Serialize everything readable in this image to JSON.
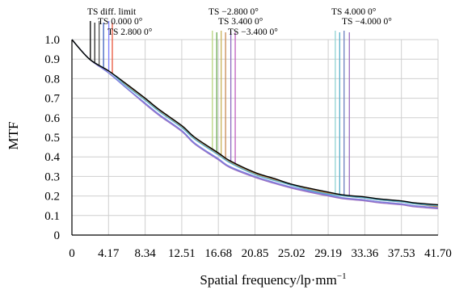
{
  "chart_data": {
    "type": "line",
    "title": "",
    "xlabel": "Spatial frequency/lp·mm",
    "xlabel_superscript": "−1",
    "ylabel": "MTF",
    "xlim": [
      0,
      41.7
    ],
    "ylim": [
      0,
      1.0
    ],
    "x_ticks": [
      "0",
      "4.17",
      "8.34",
      "12.51",
      "16.68",
      "20.85",
      "25.02",
      "29.19",
      "33.36",
      "37.53",
      "41.70"
    ],
    "y_ticks": [
      "0",
      "0.1",
      "0.2",
      "0.3",
      "0.4",
      "0.5",
      "0.6",
      "0.7",
      "0.8",
      "0.9",
      "1.0"
    ],
    "grid": true,
    "legend_groups": [
      {
        "labels": [
          "TS diff. limit",
          "TS 0.000 0°",
          "TS 2.800 0°"
        ],
        "marker_colors": [
          "#000000",
          "#2b2b2b",
          "#555555",
          "#3c5fbf",
          "#8080ff",
          "#e8553a"
        ],
        "marker_x": [
          2.1,
          2.6,
          3.1,
          3.6,
          4.2,
          4.6
        ]
      },
      {
        "labels": [
          "TS −2.800 0°",
          "TS 3.400 0°",
          "TS −3.400 0°"
        ],
        "marker_colors": [
          "#b9d680",
          "#6aa84f",
          "#c9b45a",
          "#c88a52",
          "#8e6bbf",
          "#c060c0"
        ],
        "marker_x": [
          16.0,
          16.5,
          17.0,
          17.5,
          18.1,
          18.6
        ]
      },
      {
        "labels": [
          "TS 4.000 0°",
          "TS −4.000 0°"
        ],
        "marker_colors": [
          "#8fd3d3",
          "#5ab0c9",
          "#6b7fbf",
          "#9b6fc0"
        ],
        "marker_x": [
          30.0,
          30.5,
          31.0,
          31.6
        ]
      }
    ],
    "series": [
      {
        "color": "#000000",
        "x": [
          0,
          2,
          4.17,
          6,
          8.34,
          10,
          12.51,
          14,
          16.68,
          18,
          20.85,
          23,
          25.02,
          27,
          29.19,
          31,
          33.36,
          35,
          37.53,
          39,
          41.7
        ],
        "y": [
          1.0,
          0.9,
          0.84,
          0.78,
          0.7,
          0.64,
          0.56,
          0.5,
          0.42,
          0.38,
          0.32,
          0.29,
          0.26,
          0.24,
          0.22,
          0.205,
          0.195,
          0.185,
          0.175,
          0.165,
          0.155
        ]
      },
      {
        "color": "#5ab0c9",
        "x": [
          0,
          2,
          4.17,
          6,
          8.34,
          10,
          12.51,
          14,
          16.68,
          18,
          20.85,
          23,
          25.02,
          27,
          29.19,
          31,
          33.36,
          35,
          37.53,
          39,
          41.7
        ],
        "y": [
          1.0,
          0.9,
          0.84,
          0.77,
          0.69,
          0.63,
          0.55,
          0.49,
          0.41,
          0.37,
          0.31,
          0.28,
          0.255,
          0.23,
          0.21,
          0.2,
          0.19,
          0.18,
          0.17,
          0.16,
          0.15
        ]
      },
      {
        "color": "#c88a52",
        "x": [
          0,
          2,
          4.17,
          6,
          8.34,
          10,
          12.51,
          14,
          16.68,
          18,
          20.85,
          23,
          25.02,
          27,
          29.19,
          31,
          33.36,
          35,
          37.53,
          39,
          41.7
        ],
        "y": [
          1.0,
          0.9,
          0.84,
          0.775,
          0.695,
          0.635,
          0.555,
          0.495,
          0.415,
          0.375,
          0.315,
          0.285,
          0.255,
          0.235,
          0.215,
          0.2,
          0.19,
          0.18,
          0.17,
          0.16,
          0.145
        ]
      },
      {
        "color": "#7a7fe0",
        "x": [
          0,
          2,
          4.17,
          6,
          8.34,
          10,
          12.51,
          14,
          16.68,
          18,
          20.85,
          23,
          25.02,
          27,
          29.19,
          31,
          33.36,
          35,
          37.53,
          39,
          41.7
        ],
        "y": [
          1.0,
          0.9,
          0.83,
          0.76,
          0.675,
          0.615,
          0.535,
          0.47,
          0.39,
          0.35,
          0.3,
          0.27,
          0.245,
          0.225,
          0.205,
          0.19,
          0.18,
          0.17,
          0.16,
          0.15,
          0.14
        ]
      },
      {
        "color": "#9b6fc0",
        "x": [
          0,
          2,
          4.17,
          6,
          8.34,
          10,
          12.51,
          14,
          16.68,
          18,
          20.85,
          23,
          25.02,
          27,
          29.19,
          31,
          33.36,
          35,
          37.53,
          39,
          41.7
        ],
        "y": [
          1.0,
          0.9,
          0.83,
          0.76,
          0.67,
          0.61,
          0.53,
          0.465,
          0.385,
          0.345,
          0.295,
          0.265,
          0.24,
          0.22,
          0.2,
          0.185,
          0.175,
          0.165,
          0.155,
          0.145,
          0.135
        ]
      }
    ]
  }
}
